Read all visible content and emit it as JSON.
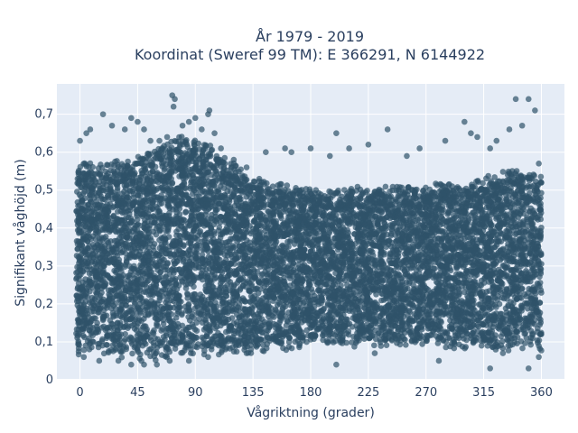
{
  "chart_data": {
    "type": "scatter",
    "title_line1": "År 1979 - 2019",
    "title_line2": "Koordinat (Sweref 99 TM): E 366291, N 6144922",
    "xlabel": "Vågriktning (grader)",
    "ylabel": "Signifikant våghöjd (m)",
    "xlim": [
      -18,
      378
    ],
    "ylim": [
      0,
      0.78
    ],
    "x_ticks": [
      0,
      45,
      90,
      135,
      180,
      225,
      270,
      315,
      360
    ],
    "x_tick_labels": [
      "0",
      "45",
      "90",
      "135",
      "180",
      "225",
      "270",
      "315",
      "360"
    ],
    "y_ticks": [
      0,
      0.1,
      0.2,
      0.3,
      0.4,
      0.5,
      0.6,
      0.7
    ],
    "y_tick_labels": [
      "0",
      "0,1",
      "0,2",
      "0,3",
      "0,4",
      "0,5",
      "0,6",
      "0,7"
    ],
    "grid": true,
    "legend": "none",
    "marker_color": "#2f5269",
    "plot_background": "#e5ecf6",
    "band": {
      "x_range": [
        -3,
        360
      ],
      "lower_envelope": [
        [
          0,
          0.08
        ],
        [
          45,
          0.06
        ],
        [
          90,
          0.07
        ],
        [
          135,
          0.08
        ],
        [
          180,
          0.1
        ],
        [
          225,
          0.1
        ],
        [
          270,
          0.1
        ],
        [
          315,
          0.09
        ],
        [
          360,
          0.09
        ]
      ],
      "upper_envelope": [
        [
          0,
          0.56
        ],
        [
          45,
          0.58
        ],
        [
          75,
          0.64
        ],
        [
          100,
          0.62
        ],
        [
          135,
          0.52
        ],
        [
          180,
          0.5
        ],
        [
          225,
          0.5
        ],
        [
          270,
          0.5
        ],
        [
          315,
          0.52
        ],
        [
          345,
          0.56
        ],
        [
          360,
          0.52
        ]
      ]
    },
    "outliers": [
      [
        0,
        0.63
      ],
      [
        5,
        0.65
      ],
      [
        8,
        0.66
      ],
      [
        18,
        0.7
      ],
      [
        25,
        0.67
      ],
      [
        35,
        0.66
      ],
      [
        40,
        0.69
      ],
      [
        45,
        0.68
      ],
      [
        50,
        0.66
      ],
      [
        55,
        0.63
      ],
      [
        62,
        0.63
      ],
      [
        68,
        0.64
      ],
      [
        72,
        0.75
      ],
      [
        73,
        0.72
      ],
      [
        74,
        0.74
      ],
      [
        80,
        0.67
      ],
      [
        85,
        0.68
      ],
      [
        90,
        0.69
      ],
      [
        95,
        0.66
      ],
      [
        100,
        0.7
      ],
      [
        101,
        0.71
      ],
      [
        105,
        0.65
      ],
      [
        110,
        0.61
      ],
      [
        120,
        0.58
      ],
      [
        130,
        0.56
      ],
      [
        145,
        0.6
      ],
      [
        160,
        0.61
      ],
      [
        165,
        0.6
      ],
      [
        180,
        0.61
      ],
      [
        195,
        0.59
      ],
      [
        200,
        0.65
      ],
      [
        210,
        0.61
      ],
      [
        225,
        0.62
      ],
      [
        240,
        0.66
      ],
      [
        255,
        0.59
      ],
      [
        265,
        0.61
      ],
      [
        285,
        0.63
      ],
      [
        300,
        0.68
      ],
      [
        305,
        0.65
      ],
      [
        310,
        0.64
      ],
      [
        320,
        0.61
      ],
      [
        325,
        0.63
      ],
      [
        335,
        0.66
      ],
      [
        340,
        0.74
      ],
      [
        345,
        0.67
      ],
      [
        350,
        0.74
      ],
      [
        355,
        0.71
      ],
      [
        358,
        0.57
      ],
      [
        3,
        0.06
      ],
      [
        15,
        0.05
      ],
      [
        30,
        0.05
      ],
      [
        40,
        0.04
      ],
      [
        50,
        0.04
      ],
      [
        60,
        0.04
      ],
      [
        70,
        0.05
      ],
      [
        85,
        0.05
      ],
      [
        100,
        0.06
      ],
      [
        130,
        0.07
      ],
      [
        200,
        0.04
      ],
      [
        230,
        0.07
      ],
      [
        280,
        0.05
      ],
      [
        320,
        0.03
      ],
      [
        330,
        0.07
      ],
      [
        350,
        0.03
      ],
      [
        358,
        0.06
      ]
    ],
    "point_count": 9000
  }
}
